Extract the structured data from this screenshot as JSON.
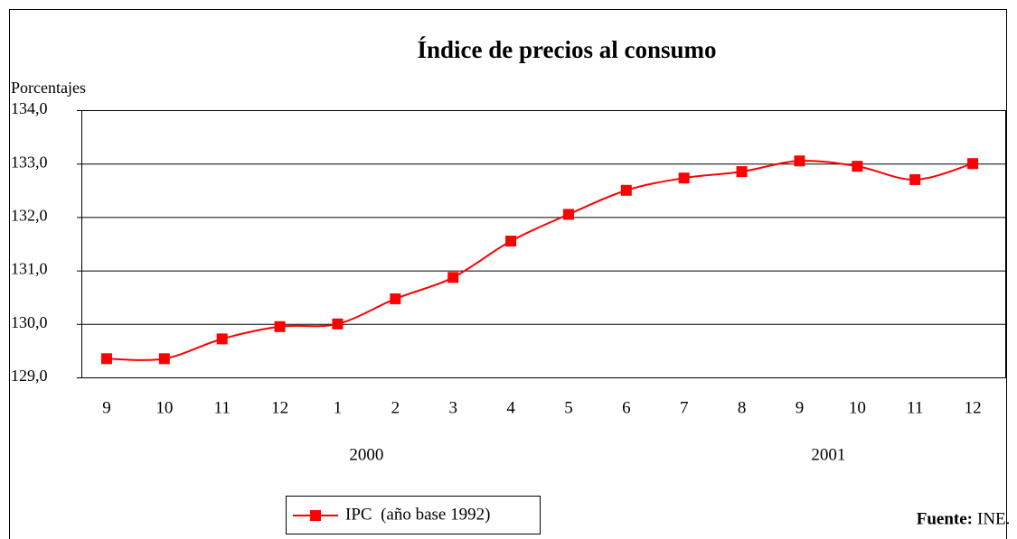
{
  "chart_data": {
    "type": "line",
    "title": "Índice de precios al consumo",
    "y_label": "Porcentajes",
    "categories": [
      "9",
      "10",
      "11",
      "12",
      "1",
      "2",
      "3",
      "4",
      "5",
      "6",
      "7",
      "8",
      "9",
      "10",
      "11",
      "12"
    ],
    "series": [
      {
        "name": "IPC  (año base 1992)",
        "color": "#ff0000",
        "values": [
          129.35,
          129.35,
          129.72,
          129.95,
          130.0,
          130.47,
          130.87,
          131.55,
          132.05,
          132.5,
          132.73,
          132.85,
          133.05,
          132.95,
          132.7,
          133.0
        ]
      }
    ],
    "ylim": [
      129,
      134
    ],
    "yticks": [
      {
        "value": 129,
        "label": "129,0"
      },
      {
        "value": 130,
        "label": "130,0"
      },
      {
        "value": 131,
        "label": "131,0"
      },
      {
        "value": 132,
        "label": "132,0"
      },
      {
        "value": 133,
        "label": "133,0"
      },
      {
        "value": 134,
        "label": "134,0"
      }
    ],
    "grid": true,
    "annotations": [
      {
        "text": "2000"
      },
      {
        "text": "2001"
      }
    ],
    "source_label": "Fuente:",
    "source": "INE."
  }
}
